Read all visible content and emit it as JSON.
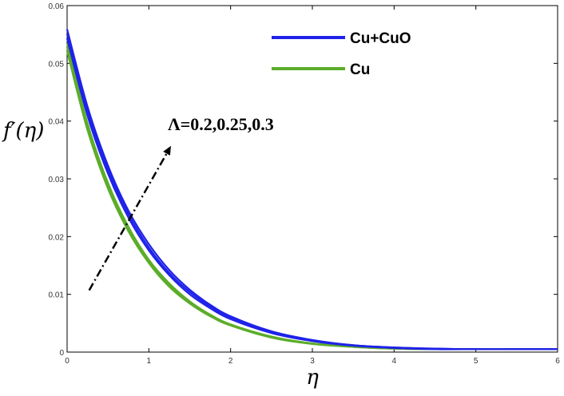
{
  "chart_data": {
    "type": "line",
    "xlabel": "η",
    "ylabel": "f′(η)",
    "xlim": [
      0,
      6
    ],
    "ylim": [
      0,
      0.06
    ],
    "x_ticks": [
      "0",
      "1",
      "2",
      "3",
      "4",
      "5",
      "6"
    ],
    "y_ticks": [
      "0",
      "0.01",
      "0.02",
      "0.03",
      "0.04",
      "0.05",
      "0.06"
    ],
    "grid": false,
    "legend_position": "top-right",
    "x": [
      0,
      0.25,
      0.5,
      0.75,
      1,
      1.25,
      1.5,
      1.75,
      2,
      2.5,
      3,
      3.5,
      4,
      4.5,
      5,
      5.5,
      6
    ],
    "series": [
      {
        "name": "Cu+CuO",
        "color": "#1f22e8",
        "lines": [
          [
            0.0559,
            0.0425,
            0.0323,
            0.0245,
            0.0187,
            0.0142,
            0.0108,
            0.0082,
            0.0062,
            0.0036,
            0.0021,
            0.0012,
            0.0008,
            0.0006,
            0.0005,
            0.0005,
            0.0005
          ],
          [
            0.0551,
            0.0417,
            0.0316,
            0.0239,
            0.0181,
            0.0137,
            0.0104,
            0.0079,
            0.006,
            0.0034,
            0.002,
            0.0012,
            0.0008,
            0.0006,
            0.0005,
            0.0005,
            0.0005
          ],
          [
            0.0543,
            0.0409,
            0.0309,
            0.0233,
            0.0176,
            0.0133,
            0.01,
            0.0076,
            0.0057,
            0.0033,
            0.0019,
            0.0011,
            0.0007,
            0.0005,
            0.0005,
            0.0005,
            0.0005
          ]
        ]
      },
      {
        "name": "Cu",
        "color": "#5cad2a",
        "lines": [
          [
            0.0535,
            0.0396,
            0.0293,
            0.0217,
            0.016,
            0.0119,
            0.0088,
            0.0065,
            0.0048,
            0.0027,
            0.0015,
            0.0009,
            0.0006,
            0.0005,
            0.0005,
            0.0005,
            0.0005
          ],
          [
            0.0528,
            0.039,
            0.0288,
            0.0213,
            0.0157,
            0.0116,
            0.0086,
            0.0063,
            0.0047,
            0.0026,
            0.0015,
            0.0009,
            0.0006,
            0.0005,
            0.0005,
            0.0005,
            0.0005
          ],
          [
            0.0521,
            0.0384,
            0.0283,
            0.0209,
            0.0154,
            0.0113,
            0.0084,
            0.0062,
            0.0046,
            0.0025,
            0.0014,
            0.0009,
            0.0006,
            0.0005,
            0.0005,
            0.0005,
            0.0005
          ]
        ]
      }
    ],
    "annotation": {
      "text": "Λ=0.2,0.25,0.3",
      "arrow_from": [
        0.27,
        0.0107
      ],
      "arrow_to": [
        1.27,
        0.0357
      ]
    }
  }
}
